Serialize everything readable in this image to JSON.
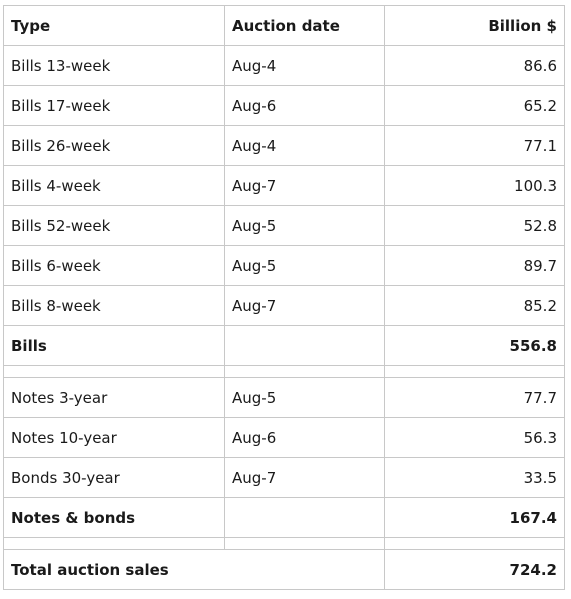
{
  "table": {
    "headers": [
      "Type",
      "Auction date",
      "Billion $"
    ],
    "bills": [
      [
        "Bills 13-week",
        "Aug-4",
        "86.6"
      ],
      [
        "Bills 17-week",
        "Aug-6",
        "65.2"
      ],
      [
        "Bills 26-week",
        "Aug-4",
        "77.1"
      ],
      [
        "Bills 4-week",
        "Aug-7",
        "100.3"
      ],
      [
        "Bills 52-week",
        "Aug-5",
        "52.8"
      ],
      [
        "Bills 6-week",
        "Aug-5",
        "89.7"
      ],
      [
        "Bills 8-week",
        "Aug-7",
        "85.2"
      ]
    ],
    "bills_total": {
      "label": "Bills",
      "value": "556.8"
    },
    "notes": [
      [
        "Notes 3-year",
        "Aug-5",
        "77.7"
      ],
      [
        "Notes 10-year",
        "Aug-6",
        "56.3"
      ],
      [
        "Bonds 30-year",
        "Aug-7",
        "33.5"
      ]
    ],
    "notes_total": {
      "label": "Notes & bonds",
      "value": "167.4"
    },
    "grand_total": {
      "label": "Total auction sales",
      "value": "724.2"
    }
  }
}
